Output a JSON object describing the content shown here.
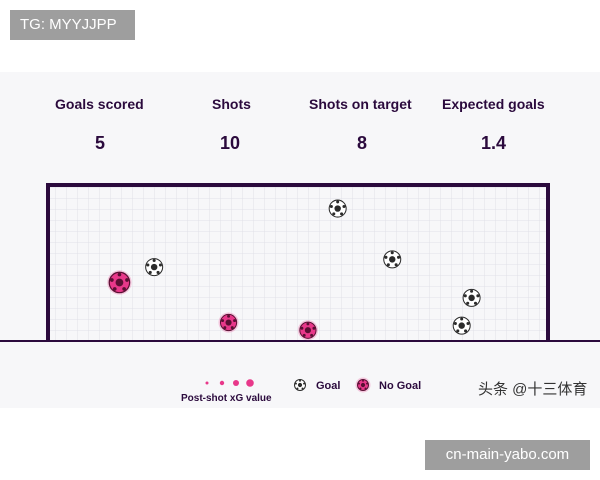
{
  "stats": [
    {
      "label": "Goals scored",
      "value": "5"
    },
    {
      "label": "Shots",
      "value": "10"
    },
    {
      "label": "Shots on target",
      "value": "8"
    },
    {
      "label": "Expected goals",
      "value": "1.4"
    }
  ],
  "legend": {
    "size_label": "Post-shot xG value",
    "goal_label": "Goal",
    "no_goal_label": "No Goal"
  },
  "watermarks": {
    "top_left": "TG: MYYJJPP",
    "bottom_right": "cn-main-yabo.com",
    "credit": "头条 @十三体育"
  },
  "colors": {
    "goal_frame": "#2b0a3d",
    "no_goal": "#e8388a",
    "goal_marker": "#ffffff",
    "net": "#dcdce4"
  },
  "chart_data": {
    "type": "scatter",
    "description_type": "shot placement on goal mouth",
    "xlim": [
      0,
      100
    ],
    "ylim": [
      0,
      100
    ],
    "grid": true,
    "series": [
      {
        "name": "Goal",
        "points": [
          {
            "x": 21,
            "y": 48
          },
          {
            "x": 58,
            "y": 86
          },
          {
            "x": 69,
            "y": 53
          },
          {
            "x": 85,
            "y": 28
          },
          {
            "x": 83,
            "y": 10
          }
        ]
      },
      {
        "name": "No Goal",
        "points": [
          {
            "x": 14,
            "y": 38,
            "xg": 0.6
          },
          {
            "x": 36,
            "y": 12,
            "xg": 0.3
          },
          {
            "x": 52,
            "y": 7,
            "xg": 0.3
          }
        ]
      }
    ]
  }
}
